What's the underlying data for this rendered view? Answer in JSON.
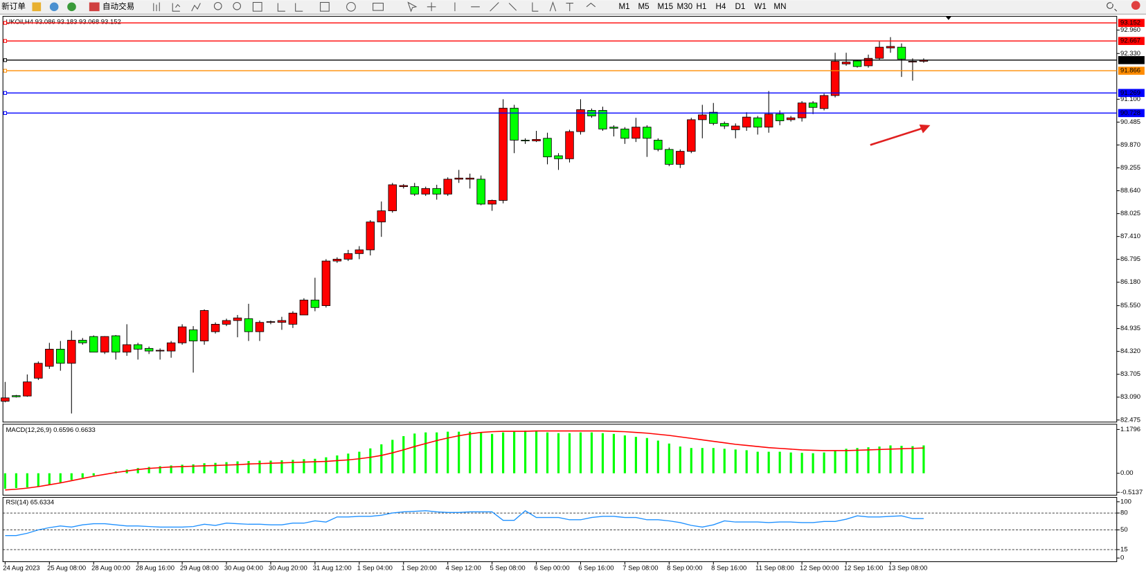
{
  "toolbar": {
    "new_order": "新订单",
    "auto_trading": "自动交易",
    "timeframes": [
      "M1",
      "M5",
      "M15",
      "M30",
      "H1",
      "H4",
      "D1",
      "W1",
      "MN"
    ]
  },
  "chart_data": [
    {
      "type": "candlestick",
      "title": "UKOil,H4 93.086 93.183 93.068 93.152",
      "categories": [
        "24 Aug 2023",
        null,
        null,
        null,
        "25 Aug 08:00",
        null,
        null,
        null,
        "28 Aug 00:00",
        null,
        null,
        null,
        "28 Aug 16:00",
        null,
        null,
        null,
        "29 Aug 08:00",
        null,
        null,
        null,
        "30 Aug 04:00",
        null,
        null,
        null,
        "30 Aug 20:00",
        null,
        null,
        null,
        "31 Aug 12:00",
        null,
        null,
        null,
        "1 Sep 04:00",
        null,
        null,
        null,
        "1 Sep 20:00",
        null,
        null,
        null,
        "4 Sep 12:00",
        null,
        null,
        null,
        "5 Sep 08:00",
        null,
        null,
        null,
        "6 Sep 00:00",
        null,
        null,
        null,
        "6 Sep 16:00",
        null,
        null,
        null,
        "7 Sep 08:00",
        null,
        null,
        null,
        "8 Sep 00:00",
        null,
        null,
        null,
        "8 Sep 16:00",
        null,
        null,
        null,
        "11 Sep 08:00",
        null,
        null,
        null,
        "12 Sep 00:00",
        null,
        null,
        null,
        "12 Sep 16:00",
        null,
        null,
        null,
        "13 Sep 08:00",
        null,
        null,
        null
      ],
      "open": [
        82.98,
        83.13,
        83.12,
        83.6,
        83.92,
        84.38,
        84.0,
        84.62,
        84.72,
        84.3,
        84.74,
        84.3,
        84.5,
        84.4,
        84.33,
        84.33,
        84.55,
        84.9,
        84.6,
        84.85,
        85.05,
        85.15,
        85.2,
        84.85,
        85.1,
        85.1,
        85.05,
        85.3,
        85.7,
        85.55,
        86.75,
        86.8,
        86.95,
        87.05,
        87.8,
        88.1,
        88.75,
        88.75,
        88.55,
        88.7,
        88.55,
        88.95,
        88.95,
        88.95,
        88.28,
        88.38,
        90.86,
        90.0,
        89.98,
        90.05,
        89.58,
        89.5,
        90.23,
        90.8,
        90.8,
        90.35,
        90.3,
        90.05,
        90.35,
        90.0,
        89.75,
        89.35,
        89.7,
        90.55,
        90.75,
        90.45,
        90.28,
        90.35,
        90.6,
        90.35,
        90.7,
        90.55,
        90.6,
        91.0,
        90.85,
        91.2,
        92.05,
        92.13,
        92.0,
        92.2,
        92.48,
        92.5,
        92.1,
        92.12
      ],
      "high": [
        83.5,
        83.15,
        83.7,
        84.05,
        84.55,
        84.6,
        84.88,
        84.68,
        84.75,
        84.73,
        84.76,
        85.05,
        84.55,
        84.45,
        84.4,
        84.6,
        85.05,
        85.0,
        85.45,
        85.1,
        85.2,
        85.3,
        85.6,
        85.15,
        85.15,
        85.25,
        85.4,
        85.75,
        86.3,
        86.8,
        86.85,
        87.05,
        87.15,
        87.85,
        88.35,
        88.85,
        88.82,
        88.85,
        88.75,
        88.8,
        89.0,
        89.2,
        89.1,
        89.05,
        88.4,
        91.1,
        90.95,
        90.05,
        90.25,
        90.2,
        89.65,
        90.28,
        91.1,
        90.85,
        90.9,
        90.4,
        90.35,
        90.6,
        90.4,
        90.05,
        89.8,
        89.75,
        90.6,
        90.95,
        91.0,
        90.5,
        90.45,
        90.75,
        90.65,
        91.32,
        90.8,
        90.65,
        91.05,
        91.05,
        91.25,
        92.35,
        92.35,
        92.15,
        92.3,
        92.65,
        92.77,
        92.6,
        92.2,
        92.2
      ],
      "low": [
        82.95,
        83.08,
        83.1,
        83.55,
        83.85,
        83.8,
        82.65,
        84.5,
        84.3,
        84.25,
        84.1,
        84.2,
        84.1,
        84.25,
        84.1,
        84.15,
        84.5,
        83.75,
        84.5,
        84.8,
        85.0,
        84.7,
        84.6,
        84.6,
        85.05,
        84.9,
        84.95,
        85.3,
        85.4,
        85.5,
        86.7,
        86.75,
        86.8,
        86.9,
        87.4,
        88.05,
        88.7,
        88.5,
        88.5,
        88.4,
        88.5,
        88.85,
        88.7,
        88.25,
        88.1,
        88.3,
        89.65,
        89.9,
        89.95,
        89.35,
        89.2,
        89.4,
        90.15,
        90.6,
        90.25,
        90.1,
        89.9,
        89.95,
        89.55,
        89.7,
        89.3,
        89.25,
        89.65,
        90.05,
        90.4,
        90.3,
        90.05,
        90.25,
        90.15,
        90.2,
        90.4,
        90.5,
        90.5,
        90.7,
        90.8,
        91.15,
        92.0,
        91.95,
        91.95,
        92.15,
        92.35,
        91.7,
        91.6,
        92.08
      ],
      "close": [
        83.07,
        83.1,
        83.5,
        84.0,
        84.38,
        84.0,
        84.62,
        84.55,
        84.3,
        84.72,
        84.3,
        84.5,
        84.38,
        84.33,
        84.35,
        84.55,
        84.98,
        84.6,
        85.42,
        85.05,
        85.15,
        85.22,
        84.85,
        85.1,
        85.12,
        85.15,
        85.35,
        85.7,
        85.5,
        86.75,
        86.8,
        86.95,
        87.05,
        87.8,
        88.1,
        88.8,
        88.78,
        88.55,
        88.7,
        88.55,
        88.95,
        88.98,
        88.98,
        88.28,
        88.38,
        90.86,
        90.0,
        89.98,
        90.02,
        89.55,
        89.5,
        90.23,
        90.82,
        90.65,
        90.3,
        90.32,
        90.05,
        90.35,
        90.05,
        89.75,
        89.35,
        89.7,
        90.55,
        90.68,
        90.45,
        90.38,
        90.38,
        90.62,
        90.35,
        90.7,
        90.52,
        90.6,
        91.0,
        90.88,
        91.2,
        92.12,
        92.1,
        91.98,
        92.2,
        92.5,
        92.52,
        92.18,
        92.12,
        92.15
      ],
      "up_color": "#ff0000",
      "down_color": "#00ff00",
      "ylim": [
        82.42,
        93.33
      ],
      "yticks": [
        {
          "value": 92.96,
          "label": "92.960"
        },
        {
          "value": 92.33,
          "label": "92.330"
        },
        {
          "value": 91.1,
          "label": "91.100"
        },
        90.485,
        {
          "value": 89.87,
          "label": "89.870"
        },
        89.255,
        {
          "value": 88.64,
          "label": "88.640"
        },
        88.025,
        {
          "value": 87.41,
          "label": "87.410"
        },
        86.795,
        {
          "value": 86.18,
          "label": "86.180"
        },
        {
          "value": 85.55,
          "label": "85.550"
        },
        84.935,
        {
          "value": 84.32,
          "label": "84.320"
        },
        83.705,
        {
          "value": 83.09,
          "label": "83.090"
        },
        82.475
      ],
      "levels": [
        {
          "value": 93.152,
          "color": "#ff0000"
        },
        {
          "value": 92.667,
          "color": "#ff0000"
        },
        {
          "value": 92.152,
          "color": "#000000"
        },
        {
          "value": 91.866,
          "color": "#ff8c00"
        },
        {
          "value": 91.269,
          "color": "#0000ff"
        },
        {
          "value": 90.728,
          "color": "#0000ff"
        }
      ]
    },
    {
      "type": "macd",
      "title": "MACD(12,26,9) 0.6596 0.6633",
      "histogram": {
        "color": "#00ff00",
        "values": [
          -0.42,
          -0.4,
          -0.38,
          -0.35,
          -0.3,
          -0.25,
          -0.18,
          -0.12,
          -0.06,
          0.0,
          0.05,
          0.1,
          0.14,
          0.17,
          0.19,
          0.21,
          0.23,
          0.24,
          0.27,
          0.28,
          0.3,
          0.32,
          0.33,
          0.34,
          0.34,
          0.35,
          0.36,
          0.38,
          0.39,
          0.43,
          0.48,
          0.53,
          0.58,
          0.67,
          0.78,
          0.9,
          1.0,
          1.07,
          1.1,
          1.1,
          1.12,
          1.12,
          1.12,
          1.1,
          1.06,
          1.1,
          1.12,
          1.15,
          1.13,
          1.1,
          1.08,
          1.08,
          1.1,
          1.1,
          1.08,
          1.06,
          1.02,
          0.98,
          0.95,
          0.88,
          0.8,
          0.72,
          0.68,
          0.68,
          0.68,
          0.66,
          0.64,
          0.62,
          0.58,
          0.58,
          0.58,
          0.56,
          0.55,
          0.54,
          0.56,
          0.62,
          0.66,
          0.68,
          0.7,
          0.72,
          0.75,
          0.74,
          0.73,
          0.75
        ]
      },
      "signal": {
        "color": "#ff0000",
        "values": [
          -0.45,
          -0.43,
          -0.4,
          -0.36,
          -0.31,
          -0.26,
          -0.2,
          -0.14,
          -0.08,
          -0.03,
          0.02,
          0.06,
          0.1,
          0.13,
          0.15,
          0.17,
          0.18,
          0.19,
          0.2,
          0.21,
          0.22,
          0.23,
          0.25,
          0.26,
          0.27,
          0.28,
          0.29,
          0.3,
          0.31,
          0.32,
          0.34,
          0.36,
          0.39,
          0.43,
          0.48,
          0.55,
          0.63,
          0.72,
          0.8,
          0.88,
          0.95,
          1.01,
          1.06,
          1.1,
          1.12,
          1.13,
          1.13,
          1.13,
          1.14,
          1.14,
          1.14,
          1.14,
          1.14,
          1.14,
          1.14,
          1.13,
          1.12,
          1.1,
          1.08,
          1.05,
          1.02,
          0.98,
          0.94,
          0.9,
          0.86,
          0.82,
          0.78,
          0.75,
          0.72,
          0.69,
          0.67,
          0.65,
          0.63,
          0.62,
          0.61,
          0.61,
          0.61,
          0.62,
          0.63,
          0.64,
          0.65,
          0.66,
          0.67,
          0.68
        ]
      },
      "ylim": [
        -0.59,
        1.32
      ],
      "yticks": [
        1.1796,
        {
          "value": 0,
          "label": "0.00"
        },
        -0.5137
      ]
    },
    {
      "type": "line",
      "title": "RSI(14) 65.6334",
      "color": "#1e90ff",
      "values": [
        40,
        40,
        44,
        50,
        54,
        57,
        55,
        59,
        61,
        61,
        59,
        57,
        57,
        56,
        55,
        55,
        55,
        56,
        60,
        58,
        62,
        61,
        60,
        60,
        59,
        59,
        62,
        62,
        66,
        64,
        73,
        73,
        74,
        74,
        76,
        80,
        82,
        83,
        84,
        82,
        81,
        81,
        82,
        82,
        82,
        67,
        67,
        84,
        72,
        72,
        72,
        68,
        68,
        72,
        74,
        74,
        72,
        72,
        68,
        68,
        66,
        63,
        58,
        55,
        59,
        66,
        64,
        64,
        64,
        63,
        64,
        64,
        63,
        63,
        65,
        65,
        69,
        75,
        73,
        73,
        74,
        75,
        70,
        70
      ],
      "ylim": [
        -6.5,
        107.8
      ],
      "yticks": [
        100,
        80,
        50,
        15,
        0
      ],
      "levels": [
        80,
        50,
        15
      ]
    }
  ]
}
